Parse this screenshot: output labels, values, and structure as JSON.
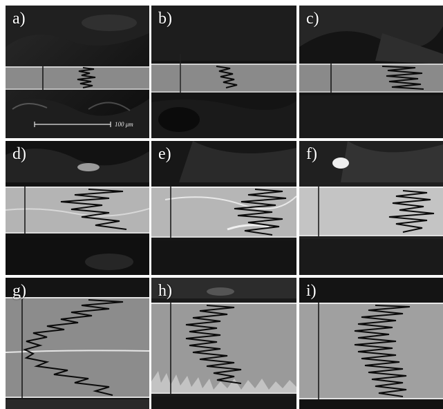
{
  "figure": {
    "panels": [
      {
        "label": "a)"
      },
      {
        "label": "b)"
      },
      {
        "label": "c)"
      },
      {
        "label": "d)"
      },
      {
        "label": "e)"
      },
      {
        "label": "f)"
      },
      {
        "label": "g)"
      },
      {
        "label": "h)"
      },
      {
        "label": "i)"
      }
    ],
    "scale_bar": {
      "text": "100 μm"
    },
    "colors": {
      "background": "#ffffff",
      "dark": "#101010",
      "band": "#8e8e8e",
      "trace": "#0a0a0a"
    }
  }
}
